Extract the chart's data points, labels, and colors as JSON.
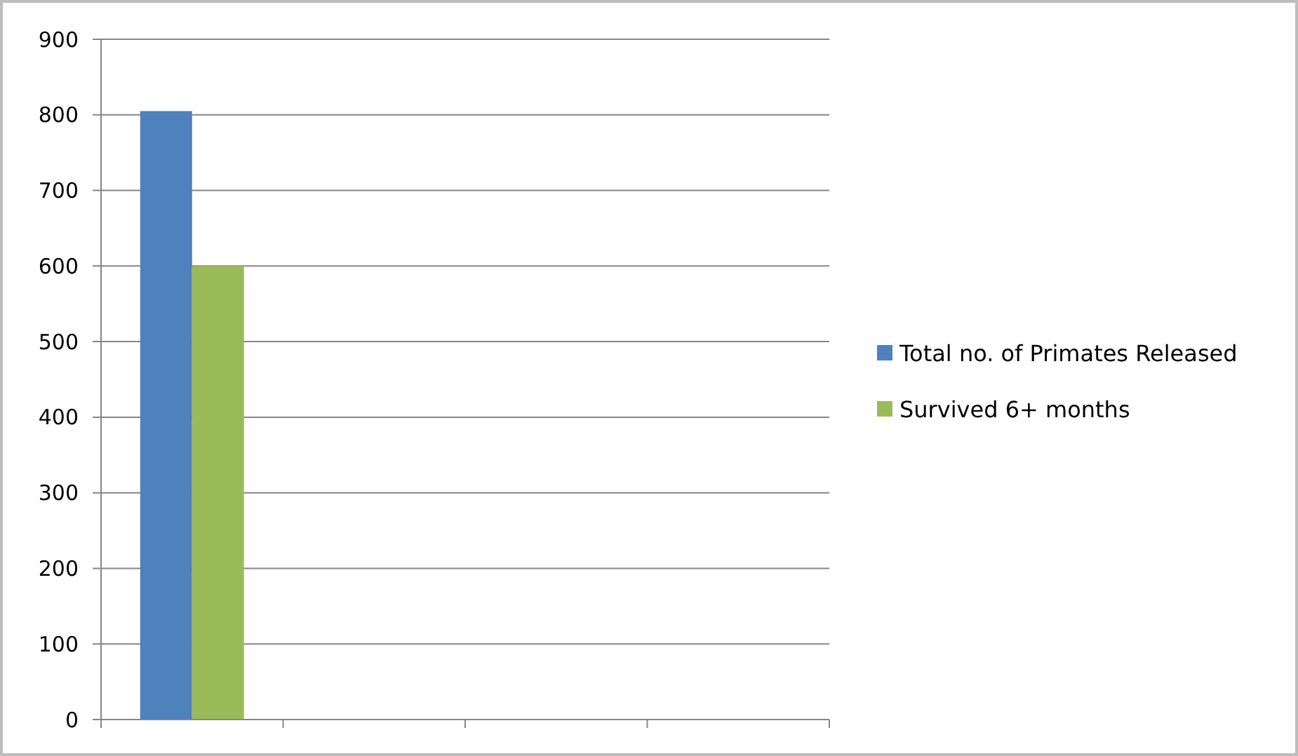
{
  "chart_data": {
    "type": "bar",
    "categories": [
      null,
      null,
      null,
      null
    ],
    "series": [
      {
        "name": "Total no. of Primates Released",
        "color": "#4f81bd",
        "values": [
          805,
          null,
          null,
          null
        ]
      },
      {
        "name": "Survived 6+ months",
        "color": "#9bbb59",
        "values": [
          600,
          null,
          null,
          null
        ]
      }
    ],
    "ylim": [
      0,
      900
    ],
    "yticks": [
      0,
      100,
      200,
      300,
      400,
      500,
      600,
      700,
      800,
      900
    ],
    "grid": "y",
    "legend": "right"
  }
}
